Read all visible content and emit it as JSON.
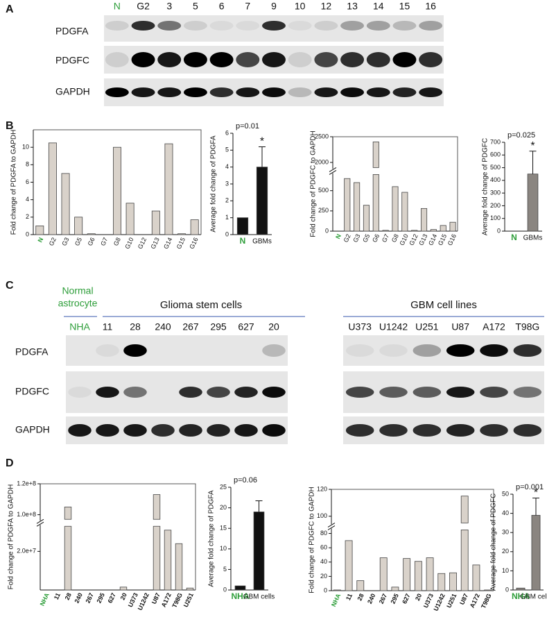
{
  "panels": [
    "A",
    "B",
    "C",
    "D"
  ],
  "blot_a": {
    "lanes": [
      "N",
      "G2",
      "3",
      "5",
      "6",
      "7",
      "9",
      "10",
      "12",
      "13",
      "14",
      "15",
      "16"
    ],
    "rows": [
      "PDGFA",
      "PDGFC",
      "GAPDH"
    ]
  },
  "blot_c": {
    "header_normal": [
      "Normal",
      "astrocyte"
    ],
    "header_glioma": "Glioma stem cells",
    "header_lines": "GBM cell lines",
    "lanes_left": [
      "NHA",
      "11",
      "28",
      "240",
      "267",
      "295",
      "627",
      "20"
    ],
    "lanes_right": [
      "U373",
      "U1242",
      "U251",
      "U87",
      "A172",
      "T98G"
    ],
    "rows": [
      "PDGFA",
      "PDGFC",
      "GAPDH"
    ]
  },
  "chart_data": [
    {
      "type": "bar",
      "y_label": "Fold change of PDGFA to GAPDH",
      "categories": [
        "N",
        "G2",
        "G3",
        "G5",
        "G6",
        "G7",
        "G8",
        "G10",
        "G12",
        "G13",
        "G14",
        "G15",
        "G16"
      ],
      "values": [
        1,
        10.5,
        7,
        2,
        0.1,
        0,
        10,
        3.6,
        0,
        2.7,
        10.4,
        0.1,
        1.7
      ],
      "color": "#d9d2ca",
      "first_label_color": "#2e9e3a",
      "ylim": [
        0,
        12
      ],
      "yticks": [
        0,
        2,
        4,
        6,
        8,
        10
      ]
    },
    {
      "type": "bar",
      "y_label": "Average fold change of PDGFA",
      "categories": [
        "N",
        "GBMs"
      ],
      "values": [
        1,
        4
      ],
      "errors": [
        0,
        1.2
      ],
      "color": "#111111",
      "first_label_color": "#2e9e3a",
      "annotation": "p=0.01",
      "significance": "*",
      "ylim": [
        0,
        6
      ],
      "yticks": [
        0,
        1,
        2,
        3,
        4,
        5,
        6
      ]
    },
    {
      "type": "bar",
      "y_label": "Fold change of PDGFC to GAPDH",
      "categories": [
        "N",
        "G2",
        "G3",
        "G5",
        "G6",
        "G7",
        "G8",
        "G10",
        "G12",
        "G13",
        "G14",
        "G15",
        "G16"
      ],
      "values": [
        0,
        650,
        600,
        320,
        2400,
        10,
        550,
        480,
        10,
        280,
        20,
        70,
        110
      ],
      "color": "#d9d2ca",
      "first_label_color": "#2e9e3a",
      "ylim": [
        0,
        2500
      ],
      "ybreak": [
        700,
        1900
      ],
      "yticks": [
        0,
        250,
        500,
        2000,
        2500
      ]
    },
    {
      "type": "bar",
      "y_label": "Average fold change of PDGFC",
      "categories": [
        "N",
        "GBMs"
      ],
      "values": [
        0,
        450
      ],
      "errors": [
        0,
        180
      ],
      "color": "#8a8580",
      "first_label_color": "#2e9e3a",
      "annotation": "p=0.025",
      "significance": "*",
      "ylim": [
        0,
        700
      ],
      "yticks": [
        0,
        100,
        200,
        300,
        400,
        500,
        600,
        700
      ]
    },
    {
      "type": "bar",
      "y_label": "Fold change of PDGFA to GAPDH",
      "categories": [
        "NHA",
        "11",
        "28",
        "240",
        "267",
        "295",
        "627",
        "20",
        "U373",
        "U1242",
        "U87",
        "A172",
        "T98G",
        "U251"
      ],
      "values": [
        0,
        0,
        105000000,
        0,
        0,
        0,
        0,
        1500000,
        0,
        0,
        113000000,
        31000000,
        24000000,
        1000000
      ],
      "color": "#d9d2ca",
      "first_label_color": "#2e9e3a",
      "bold_labels": true,
      "ylim": [
        0,
        120000000
      ],
      "ybreak": [
        33000000,
        97000000
      ],
      "yticks": [
        {
          "value": 20000000,
          "label": "2.0e+7"
        },
        {
          "value": 100000000,
          "label": "1.0e+8"
        },
        {
          "value": 120000000,
          "label": "1.2e+8"
        }
      ]
    },
    {
      "type": "bar",
      "y_label": "Average fold change of PDGFA",
      "categories": [
        "NHA",
        "GBM cells"
      ],
      "values": [
        1,
        19
      ],
      "errors": [
        0,
        2.7
      ],
      "color": "#111111",
      "first_label_color": "#2e9e3a",
      "annotation": "p=0.06",
      "ylim": [
        0,
        25
      ],
      "yticks": [
        0,
        5,
        10,
        15,
        20,
        25
      ]
    },
    {
      "type": "bar",
      "y_label": "Fold change of PDGFC to GAPDH",
      "categories": [
        "NHA",
        "11",
        "28",
        "240",
        "267",
        "295",
        "627",
        "20",
        "U373",
        "U1242",
        "U251",
        "U87",
        "A172",
        "T98G"
      ],
      "values": [
        1,
        70,
        14,
        0,
        46,
        5,
        45,
        41,
        46,
        24,
        25,
        115,
        36,
        1
      ],
      "color": "#d9d2ca",
      "first_label_color": "#2e9e3a",
      "bold_labels": true,
      "ylim": [
        0,
        120
      ],
      "ybreak": [
        85,
        95
      ],
      "yticks": [
        0,
        20,
        40,
        60,
        80,
        100,
        120
      ]
    },
    {
      "type": "bar",
      "y_label": "Average fold change of PDGFC",
      "categories": [
        "NHA",
        "GBM cells"
      ],
      "values": [
        1,
        39
      ],
      "errors": [
        0,
        9
      ],
      "color": "#8a8580",
      "first_label_color": "#2e9e3a",
      "annotation": "p=0.001",
      "significance": "*",
      "ylim": [
        0,
        50
      ],
      "yticks": [
        0,
        10,
        20,
        30,
        40,
        50
      ]
    }
  ]
}
